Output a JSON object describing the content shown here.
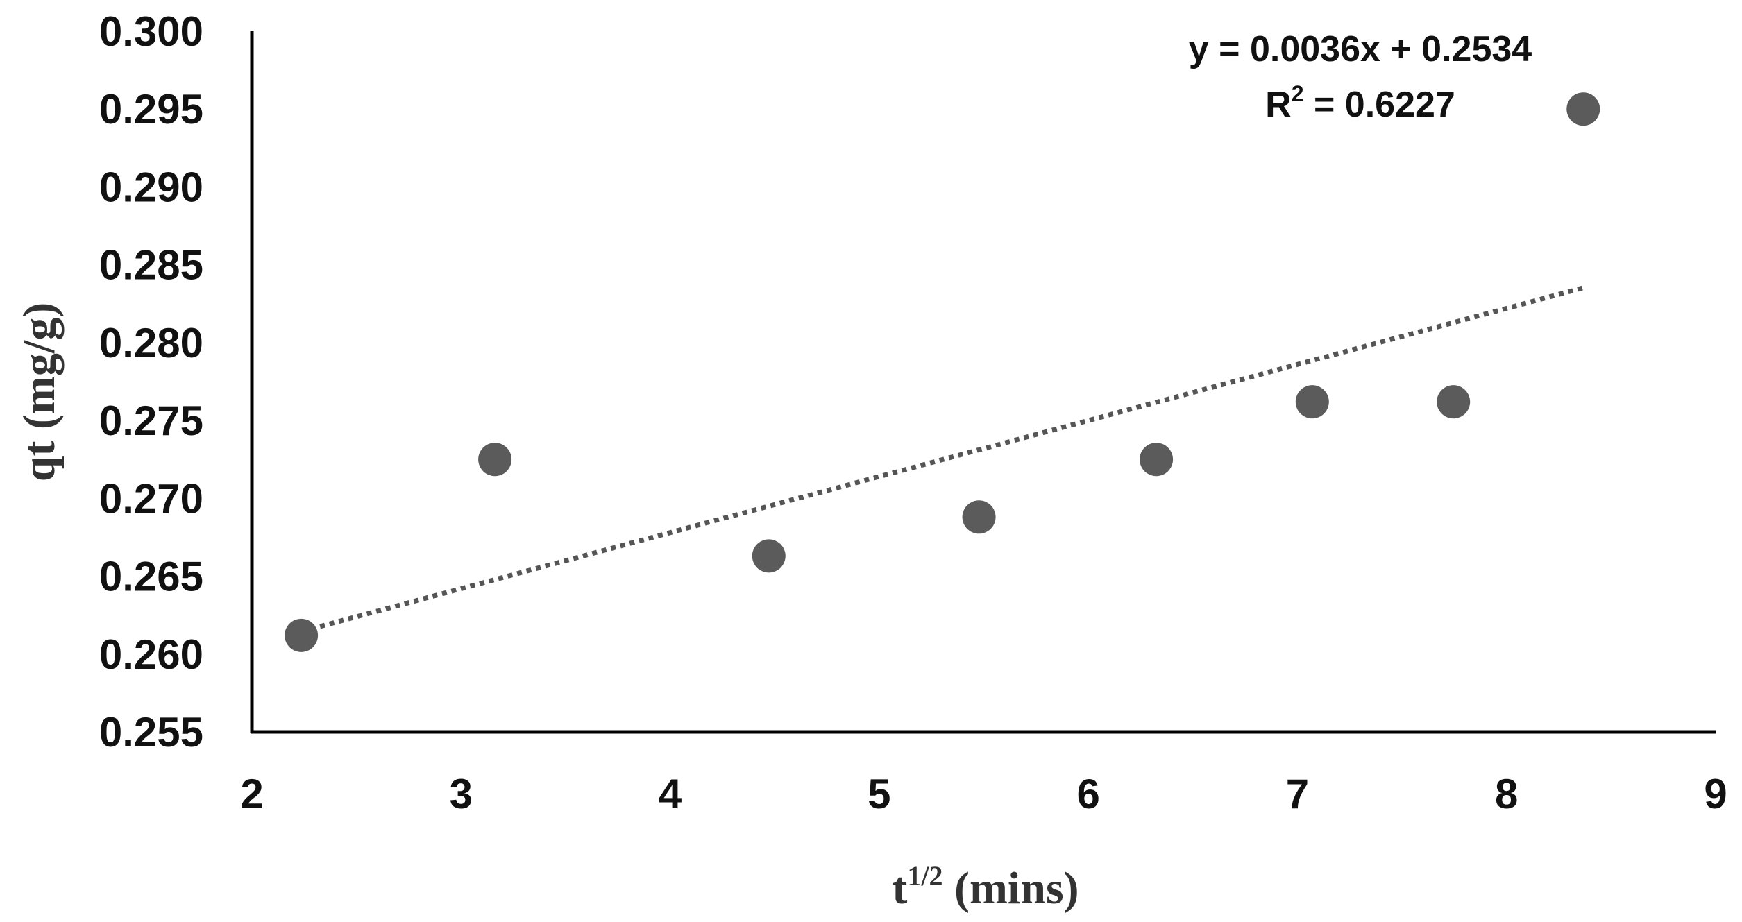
{
  "chart_data": {
    "type": "scatter",
    "title": "",
    "xlabel": "t1/2 (mins)",
    "xlabel_parts": {
      "base": "t",
      "superscript": "1/2",
      "rest": " (mins)"
    },
    "ylabel": "qt (mg/g)",
    "xlim": [
      2,
      9
    ],
    "ylim": [
      0.255,
      0.3
    ],
    "xticks": [
      "2",
      "3",
      "4",
      "5",
      "6",
      "7",
      "8",
      "9"
    ],
    "yticks": [
      "0.255",
      "0.260",
      "0.265",
      "0.270",
      "0.275",
      "0.280",
      "0.285",
      "0.290",
      "0.295",
      "0.300"
    ],
    "grid": false,
    "series": [
      {
        "name": "qt",
        "x": [
          2.236,
          3.162,
          4.472,
          5.477,
          6.325,
          7.071,
          7.746,
          8.367
        ],
        "y": [
          0.2612,
          0.2725,
          0.2663,
          0.2688,
          0.2725,
          0.2762,
          0.2762,
          0.295
        ],
        "marker_color": "#5b5b5b"
      }
    ],
    "trendline": {
      "type": "linear",
      "slope": 0.0036,
      "intercept": 0.2534,
      "x_range": [
        2.236,
        8.367
      ],
      "style": "dotted",
      "color": "#555555",
      "equation_label": "y = 0.0036x + 0.2534",
      "r2_label_base": "R",
      "r2_label_superscript": "2",
      "r2_label_rest": " = 0.6227"
    }
  }
}
